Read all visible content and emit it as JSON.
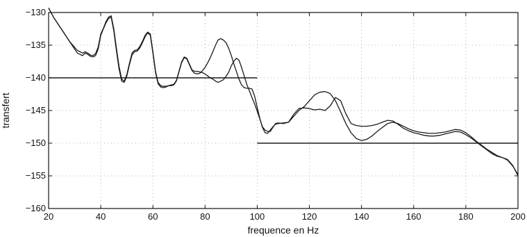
{
  "chart_data": {
    "type": "line",
    "xlabel": "frequence en Hz",
    "ylabel": "transfert",
    "xlim": [
      20,
      200
    ],
    "ylim": [
      -160,
      -130
    ],
    "xticks": [
      20,
      40,
      60,
      80,
      100,
      120,
      140,
      160,
      180,
      200
    ],
    "yticks": [
      -130,
      -135,
      -140,
      -145,
      -150,
      -155,
      -160
    ],
    "grid": true,
    "legend": "none",
    "colors": {
      "line": "#1a1a1a",
      "grid": "#9a9a9a",
      "frame": "#111111"
    },
    "series": [
      {
        "x": [
          20,
          22,
          25,
          28,
          31,
          33,
          34,
          35,
          36,
          37,
          38,
          39,
          40,
          41,
          42,
          43,
          44,
          45,
          46,
          47,
          48,
          49,
          50,
          51,
          52,
          53,
          54,
          55,
          56,
          57,
          58,
          59,
          60,
          61,
          62,
          63,
          64,
          65,
          66,
          67,
          68,
          69,
          70,
          71,
          72,
          73,
          74,
          75,
          76,
          77,
          78,
          79,
          80,
          81,
          82,
          83,
          84,
          85,
          86,
          87,
          88,
          89,
          90,
          91,
          92,
          93,
          94,
          95,
          96,
          97,
          98,
          99,
          100,
          101,
          102,
          103,
          104,
          105,
          106,
          107,
          108,
          110,
          112,
          114,
          116,
          118,
          120,
          122,
          124,
          126,
          128,
          130,
          132,
          134,
          136,
          138,
          140,
          142,
          144,
          146,
          148,
          150,
          152,
          154,
          156,
          158,
          160,
          162,
          164,
          166,
          168,
          170,
          172,
          174,
          176,
          178,
          180,
          182,
          184,
          186,
          188,
          190,
          192,
          194,
          196,
          198,
          200
        ],
        "values": [
          -129.3,
          -130.8,
          -132.6,
          -134.4,
          -135.8,
          -136.2,
          -136.0,
          -136.2,
          -136.5,
          -136.6,
          -136.3,
          -135.3,
          -133.3,
          -132.4,
          -131.4,
          -130.7,
          -130.5,
          -132.5,
          -135.4,
          -138.2,
          -140.2,
          -140.5,
          -139.5,
          -137.8,
          -136.2,
          -135.8,
          -135.7,
          -135.2,
          -134.4,
          -133.5,
          -133.0,
          -133.3,
          -136.0,
          -139.0,
          -140.7,
          -141.2,
          -141.3,
          -141.3,
          -141.2,
          -141.1,
          -141.0,
          -140.4,
          -139.0,
          -137.6,
          -136.8,
          -137.0,
          -137.9,
          -138.8,
          -139.0,
          -139.0,
          -139.1,
          -139.2,
          -139.4,
          -139.7,
          -140.0,
          -140.2,
          -140.5,
          -140.7,
          -140.5,
          -140.3,
          -139.8,
          -139.2,
          -138.2,
          -137.5,
          -137.0,
          -137.3,
          -138.4,
          -139.7,
          -141.0,
          -142.0,
          -143.0,
          -144.0,
          -145.1,
          -146.3,
          -147.5,
          -148.0,
          -148.2,
          -148.2,
          -147.6,
          -147.0,
          -146.9,
          -147.0,
          -146.8,
          -145.6,
          -144.7,
          -144.6,
          -144.7,
          -144.9,
          -144.8,
          -145.0,
          -144.3,
          -143.0,
          -143.5,
          -145.5,
          -147.0,
          -147.3,
          -147.4,
          -147.4,
          -147.3,
          -147.1,
          -146.8,
          -146.5,
          -146.6,
          -147.1,
          -147.7,
          -148.1,
          -148.4,
          -148.6,
          -148.8,
          -148.9,
          -148.9,
          -148.8,
          -148.6,
          -148.4,
          -148.2,
          -148.3,
          -148.7,
          -149.2,
          -149.8,
          -150.4,
          -151.0,
          -151.6,
          -152.0,
          -152.2,
          -152.6,
          -153.5,
          -154.8
        ]
      },
      {
        "x": [
          20,
          22,
          25,
          28,
          31,
          33,
          34,
          35,
          36,
          37,
          38,
          39,
          40,
          41,
          42,
          43,
          44,
          45,
          46,
          47,
          48,
          49,
          50,
          51,
          52,
          53,
          54,
          55,
          56,
          57,
          58,
          59,
          60,
          61,
          62,
          63,
          64,
          65,
          66,
          67,
          68,
          69,
          70,
          71,
          72,
          73,
          74,
          75,
          76,
          77,
          78,
          79,
          80,
          81,
          82,
          83,
          84,
          85,
          86,
          87,
          88,
          89,
          90,
          91,
          92,
          93,
          94,
          95,
          96,
          97,
          98,
          99,
          100,
          101,
          102,
          103,
          104,
          105,
          106,
          107,
          108,
          110,
          112,
          114,
          116,
          118,
          120,
          122,
          124,
          126,
          128,
          130,
          132,
          134,
          136,
          138,
          140,
          142,
          144,
          146,
          148,
          150,
          152,
          154,
          156,
          158,
          160,
          162,
          164,
          166,
          168,
          170,
          172,
          174,
          176,
          178,
          180,
          182,
          184,
          186,
          188,
          190,
          192,
          194,
          196,
          198,
          200
        ],
        "values": [
          -129.3,
          -130.8,
          -132.6,
          -134.4,
          -136.2,
          -136.6,
          -136.2,
          -136.4,
          -136.7,
          -136.8,
          -136.6,
          -135.6,
          -133.5,
          -132.5,
          -131.6,
          -130.9,
          -130.7,
          -132.8,
          -135.8,
          -138.6,
          -140.5,
          -140.7,
          -139.7,
          -138.0,
          -136.5,
          -136.0,
          -135.9,
          -135.4,
          -134.6,
          -133.7,
          -133.1,
          -133.5,
          -136.2,
          -139.2,
          -140.9,
          -141.4,
          -141.5,
          -141.4,
          -141.2,
          -141.2,
          -141.1,
          -140.5,
          -139.1,
          -137.7,
          -136.9,
          -137.1,
          -138.0,
          -138.9,
          -139.3,
          -139.4,
          -139.3,
          -138.9,
          -138.4,
          -137.7,
          -136.9,
          -136.0,
          -135.0,
          -134.2,
          -134.0,
          -134.2,
          -134.6,
          -135.4,
          -136.5,
          -137.8,
          -139.0,
          -140.2,
          -141.1,
          -141.5,
          -141.6,
          -141.6,
          -141.7,
          -142.8,
          -144.5,
          -146.2,
          -147.6,
          -148.4,
          -148.5,
          -148.0,
          -147.5,
          -147.1,
          -147.0,
          -146.9,
          -146.8,
          -145.9,
          -145.0,
          -144.4,
          -143.5,
          -142.6,
          -142.2,
          -142.1,
          -142.4,
          -143.5,
          -145.2,
          -147.0,
          -148.4,
          -149.3,
          -149.6,
          -149.4,
          -148.9,
          -148.2,
          -147.6,
          -147.0,
          -146.8,
          -147.0,
          -147.4,
          -147.8,
          -148.1,
          -148.3,
          -148.4,
          -148.5,
          -148.5,
          -148.4,
          -148.3,
          -148.1,
          -147.9,
          -148.0,
          -148.4,
          -149.0,
          -149.7,
          -150.3,
          -150.9,
          -151.4,
          -151.9,
          -152.2,
          -152.5,
          -153.4,
          -155.0
        ]
      },
      {
        "x": [
          20,
          100
        ],
        "values": [
          -140,
          -140
        ]
      },
      {
        "x": [
          100,
          200
        ],
        "values": [
          -150,
          -150
        ]
      }
    ]
  }
}
